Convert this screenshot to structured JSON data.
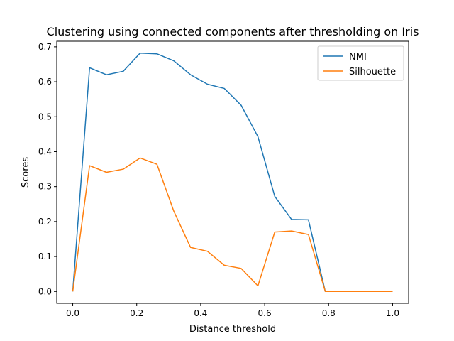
{
  "chart_data": {
    "type": "line",
    "title": "Clustering using connected components after thresholding on Iris",
    "xlabel": "Distance threshold",
    "ylabel": "Scores",
    "xlim": [
      -0.05,
      1.05
    ],
    "ylim": [
      -0.034,
      0.716
    ],
    "xticks": [
      "0.0",
      "0.2",
      "0.4",
      "0.6",
      "0.8",
      "1.0"
    ],
    "xtick_values": [
      0.0,
      0.2,
      0.4,
      0.6,
      0.8,
      1.0
    ],
    "yticks": [
      "0.0",
      "0.1",
      "0.2",
      "0.3",
      "0.4",
      "0.5",
      "0.6",
      "0.7"
    ],
    "ytick_values": [
      0.0,
      0.1,
      0.2,
      0.3,
      0.4,
      0.5,
      0.6,
      0.7
    ],
    "grid": false,
    "legend_position": "top-right",
    "x": [
      0.0,
      0.0526,
      0.1053,
      0.1579,
      0.2105,
      0.2632,
      0.3158,
      0.3684,
      0.4211,
      0.4737,
      0.5263,
      0.5789,
      0.6316,
      0.6842,
      0.7368,
      0.7895,
      0.8421,
      0.8947,
      0.9474,
      1.0
    ],
    "series": [
      {
        "name": "NMI",
        "color": "#1f77b4",
        "values": [
          0.0,
          0.64,
          0.62,
          0.63,
          0.682,
          0.68,
          0.66,
          0.62,
          0.593,
          0.581,
          0.533,
          0.443,
          0.272,
          0.206,
          0.205,
          0.0,
          0.0,
          0.0,
          0.0,
          0.0
        ]
      },
      {
        "name": "Silhouette",
        "color": "#ff7f0e",
        "values": [
          0.0,
          0.36,
          0.341,
          0.35,
          0.382,
          0.364,
          0.23,
          0.126,
          0.115,
          0.075,
          0.066,
          0.016,
          0.17,
          0.173,
          0.163,
          0.0,
          0.0,
          0.0,
          0.0,
          0.0
        ]
      }
    ]
  }
}
